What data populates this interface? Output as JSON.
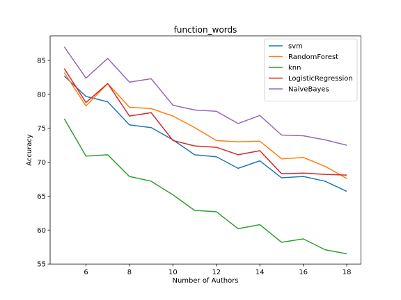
{
  "chart_data": {
    "type": "line",
    "title": "function_words",
    "xlabel": "Number of Authors",
    "ylabel": "Accuracy",
    "xlim": [
      4.35,
      18.65
    ],
    "ylim": [
      55,
      88.6
    ],
    "xticks": [
      6,
      8,
      10,
      12,
      14,
      16,
      18
    ],
    "yticks": [
      55,
      60,
      65,
      70,
      75,
      80,
      85
    ],
    "grid": false,
    "legend_position": "top-right",
    "x": [
      5,
      6,
      7,
      8,
      9,
      10,
      11,
      12,
      13,
      14,
      15,
      16,
      17,
      18
    ],
    "series": [
      {
        "name": "svm",
        "color": "#1f77b4",
        "values": [
          82.7,
          79.7,
          78.9,
          75.5,
          75.1,
          73.3,
          71.1,
          70.8,
          69.1,
          70.2,
          67.7,
          67.9,
          67.2,
          65.7
        ]
      },
      {
        "name": "RandomForest",
        "color": "#ff7f0e",
        "values": [
          83.2,
          78.3,
          81.6,
          78.1,
          77.9,
          76.8,
          75.1,
          73.2,
          73.0,
          73.1,
          70.5,
          70.7,
          69.4,
          67.6
        ]
      },
      {
        "name": "knn",
        "color": "#2ca02c",
        "values": [
          76.4,
          70.9,
          71.1,
          67.9,
          67.2,
          65.2,
          62.9,
          62.7,
          60.2,
          60.8,
          58.2,
          58.7,
          57.1,
          56.5
        ]
      },
      {
        "name": "LogisticRegression",
        "color": "#d62728",
        "values": [
          83.8,
          78.8,
          81.6,
          76.8,
          77.3,
          73.2,
          72.4,
          72.2,
          71.1,
          71.7,
          68.3,
          68.4,
          68.2,
          68.1
        ]
      },
      {
        "name": "NaiveBayes",
        "color": "#9467bd",
        "values": [
          87.0,
          82.4,
          85.3,
          81.8,
          82.3,
          78.4,
          77.7,
          77.5,
          75.7,
          76.9,
          74.0,
          73.9,
          73.3,
          72.5
        ]
      }
    ]
  }
}
